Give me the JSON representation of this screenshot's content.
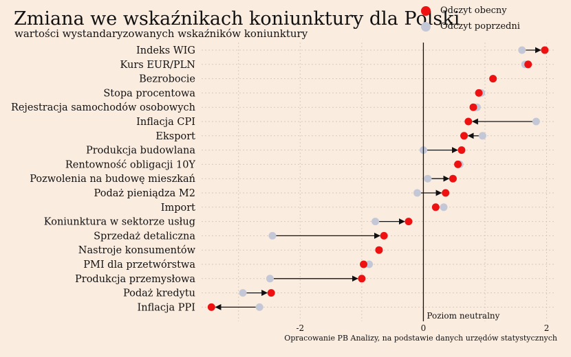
{
  "chart_data": {
    "type": "dot",
    "title": "Zmiana we wskaźnikach koniunktury dla Polski",
    "subtitle": "wartości wystandaryzowanych wskaźników koniunktury",
    "source": "Opracowanie PB Analizy, na podstawie danych urzędów statystycznych",
    "neutral_label": "Poziom neutralny",
    "xlim": [
      -3.6,
      2.15
    ],
    "x_ticks": [
      -2,
      0,
      2
    ],
    "x_tick_labels": [
      "-2",
      "0",
      "2"
    ],
    "grid": true,
    "legend_position": "top-right",
    "colors": {
      "current": "#ee1111",
      "previous": "#c4c8d6",
      "arrow": "#111111"
    },
    "series": [
      {
        "name": "Odczyt obecny",
        "key": "current"
      },
      {
        "name": "Odczyt poprzedni",
        "key": "previous"
      }
    ],
    "categories": [
      "Indeks WIG",
      "Kurs EUR/PLN",
      "Bezrobocie",
      "Stopa procentowa",
      "Rejestracja samochodów osobowych",
      "Inflacja CPI",
      "Eksport",
      "Produkcja budowlana",
      "Rentowność obligacji 10Y",
      "Pozwolenia na budowę mieszkań",
      "Podaż pieniądza M2",
      "Import",
      "Koniunktura w sektorze usług",
      "Sprzedaż detaliczna",
      "Nastroje konsumentów",
      "PMI dla przetwórstwa",
      "Produkcja przemysłowa",
      "Podaż kredytu",
      "Inflacja PPI"
    ],
    "current": [
      1.97,
      1.7,
      1.13,
      0.9,
      0.81,
      0.73,
      0.66,
      0.62,
      0.56,
      0.48,
      0.36,
      0.2,
      -0.24,
      -0.64,
      -0.72,
      -0.97,
      -1.0,
      -2.47,
      -3.44
    ],
    "previous": [
      1.6,
      1.65,
      1.13,
      0.94,
      0.87,
      1.83,
      0.96,
      0.0,
      0.59,
      0.07,
      -0.1,
      0.33,
      -0.78,
      -2.45,
      -0.72,
      -0.88,
      -2.49,
      -2.93,
      -2.66
    ],
    "arrows": [
      true,
      false,
      false,
      false,
      false,
      true,
      true,
      true,
      false,
      true,
      true,
      false,
      true,
      true,
      false,
      false,
      true,
      true,
      true
    ]
  }
}
